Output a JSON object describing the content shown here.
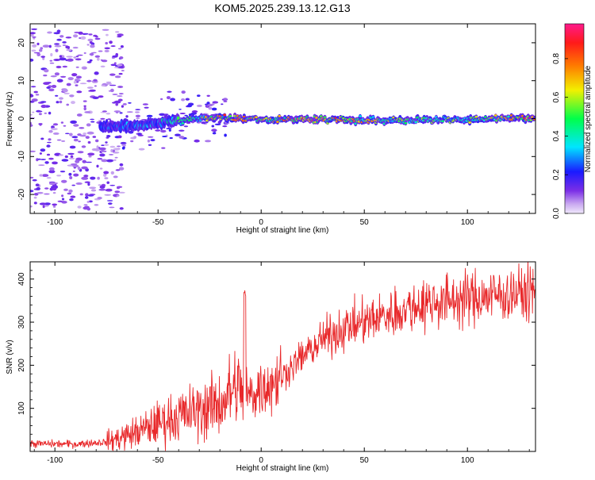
{
  "title": "KOM5.2025.239.13.12.G13",
  "colors": {
    "snr_line": "#e8282a",
    "colormap": [
      "#ffffff",
      "#c9a8f0",
      "#7b2ee6",
      "#1a1aff",
      "#00e5ff",
      "#00ff4a",
      "#f2f000",
      "#ff7a00",
      "#ff1a1a",
      "#ff1a8c"
    ]
  },
  "chart_data": [
    {
      "type": "heatmap",
      "xlabel": "Height of straight line (km)",
      "ylabel": "Frequency (Hz)",
      "xlim": [
        -112,
        133
      ],
      "ylim": [
        -25,
        25
      ],
      "xticks": [
        -100,
        -50,
        0,
        50,
        100
      ],
      "yticks": [
        -20,
        -10,
        0,
        10,
        20
      ],
      "grid": false,
      "colorbar": {
        "label": "Normalized spectral amplitude",
        "range": [
          0,
          0.98
        ],
        "ticks": [
          0.0,
          0.2,
          0.4,
          0.6,
          0.8
        ]
      },
      "ridge": {
        "description_frequency_hz": [
          [
            -75,
            -2.2
          ],
          [
            -60,
            -2.0
          ],
          [
            -50,
            -1.0
          ],
          [
            -40,
            -0.5
          ],
          [
            -30,
            0.2
          ],
          [
            -20,
            0.3
          ],
          [
            0,
            -0.2
          ],
          [
            20,
            -0.2
          ],
          [
            40,
            -0.3
          ],
          [
            60,
            -0.5
          ],
          [
            80,
            -0.2
          ],
          [
            100,
            -0.3
          ],
          [
            120,
            0.1
          ],
          [
            133,
            0.2
          ]
        ],
        "amplitude": [
          [
            -75,
            0.25
          ],
          [
            -60,
            0.3
          ],
          [
            -50,
            0.35
          ],
          [
            -40,
            0.45
          ],
          [
            -30,
            0.55
          ],
          [
            -20,
            0.75
          ],
          [
            0,
            0.6
          ],
          [
            20,
            0.8
          ],
          [
            40,
            0.7
          ],
          [
            60,
            0.55
          ],
          [
            80,
            0.5
          ],
          [
            100,
            0.55
          ],
          [
            120,
            0.6
          ],
          [
            133,
            0.9
          ]
        ]
      }
    },
    {
      "type": "line",
      "xlabel": "Height of straight line (km)",
      "ylabel": "SNR (v/v)",
      "xlim": [
        -112,
        133
      ],
      "ylim": [
        0,
        440
      ],
      "xticks": [
        -100,
        -50,
        0,
        50,
        100
      ],
      "yticks": [
        100,
        200,
        300,
        400
      ],
      "grid": false,
      "series": [
        {
          "envelope_x": [
            -112,
            -90,
            -75,
            -60,
            -45,
            -30,
            -20,
            -12,
            -8,
            -5,
            0,
            10,
            20,
            30,
            40,
            50,
            60,
            70,
            80,
            90,
            100,
            110,
            120,
            133
          ],
          "mean": [
            18,
            17,
            22,
            45,
            75,
            95,
            110,
            150,
            135,
            130,
            150,
            175,
            220,
            260,
            285,
            300,
            315,
            330,
            345,
            350,
            355,
            360,
            365,
            370
          ],
          "spike": {
            "x": -8,
            "y": 378
          }
        }
      ]
    }
  ]
}
